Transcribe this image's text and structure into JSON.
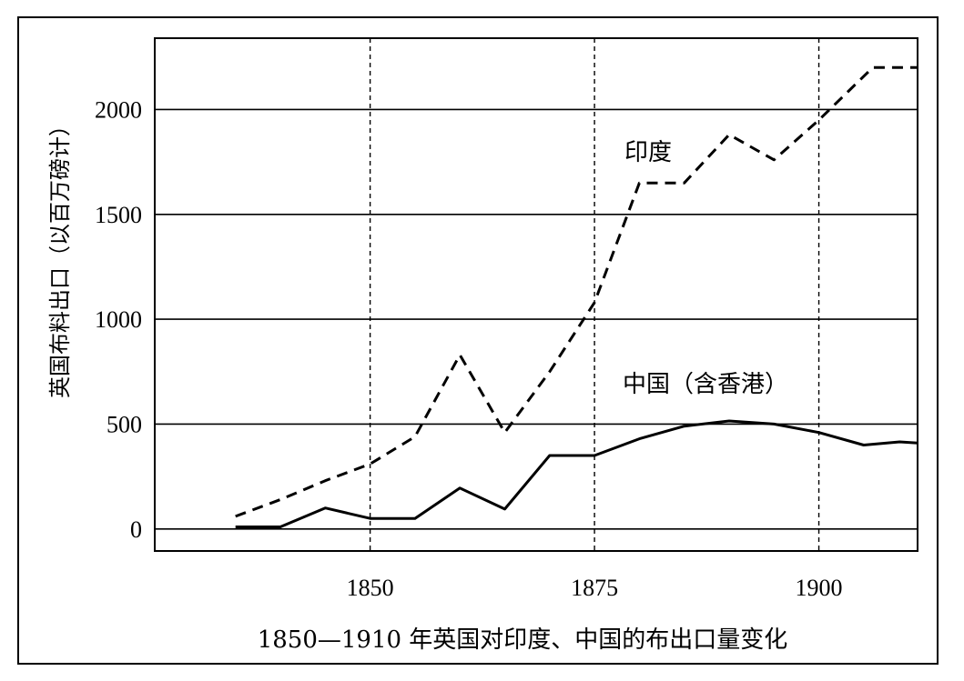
{
  "chart_data": {
    "type": "line",
    "title": "",
    "caption": "1850—1910 年英国对印度、中国的布出口量变化",
    "ylabel": "英国布料出口（以百万磅计）",
    "xlabel": "",
    "xlim": [
      1826,
      1911
    ],
    "ylim": [
      -105,
      2340
    ],
    "x_ticks": [
      1850,
      1875,
      1900
    ],
    "y_ticks": [
      0,
      500,
      1000,
      1500,
      2000
    ],
    "grid": "horizontal solid at y ticks, vertical dashed at x ticks",
    "series": [
      {
        "name": "印度",
        "style": "dashed",
        "color": "#000000",
        "x": [
          1835,
          1840,
          1845,
          1850,
          1855,
          1860,
          1865,
          1870,
          1875,
          1880,
          1885,
          1890,
          1895,
          1900,
          1906,
          1911
        ],
        "y": [
          60,
          140,
          230,
          310,
          440,
          830,
          460,
          750,
          1080,
          1650,
          1650,
          1880,
          1760,
          1950,
          2200,
          2200
        ]
      },
      {
        "name": "中国（含香港）",
        "style": "solid",
        "color": "#000000",
        "x": [
          1835,
          1840,
          1845,
          1850,
          1855,
          1860,
          1865,
          1870,
          1875,
          1880,
          1885,
          1890,
          1895,
          1900,
          1905,
          1909,
          1911
        ],
        "y": [
          10,
          10,
          100,
          50,
          50,
          195,
          95,
          350,
          350,
          430,
          490,
          515,
          500,
          460,
          400,
          415,
          410
        ]
      }
    ]
  }
}
